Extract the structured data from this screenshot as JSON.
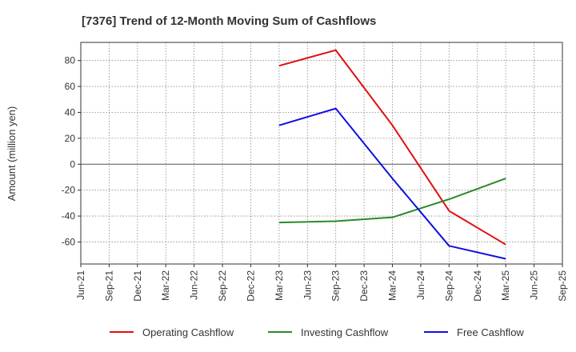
{
  "chart_data": {
    "type": "line",
    "title": "[7376]  Trend of 12-Month Moving Sum of Cashflows",
    "ylabel": "Amount (million yen)",
    "xlabel": "",
    "x": [
      "Jun-21",
      "Sep-21",
      "Dec-21",
      "Mar-22",
      "Jun-22",
      "Sep-22",
      "Dec-22",
      "Mar-23",
      "Jun-23",
      "Sep-23",
      "Dec-23",
      "Mar-24",
      "Jun-24",
      "Sep-24",
      "Dec-24",
      "Mar-25",
      "Jun-25",
      "Sep-25"
    ],
    "yticks": [
      80,
      60,
      40,
      20,
      0,
      -20,
      -40,
      -60
    ],
    "ylim": [
      -77,
      94
    ],
    "grid": true,
    "legend_position": "bottom",
    "series": [
      {
        "name": "Operating Cashflow",
        "color": "#e01010",
        "points": [
          [
            "Mar-23",
            76
          ],
          [
            "Sep-23",
            88
          ],
          [
            "Mar-24",
            30
          ],
          [
            "Sep-24",
            -36
          ],
          [
            "Mar-25",
            -62
          ]
        ]
      },
      {
        "name": "Investing Cashflow",
        "color": "#2a8a2a",
        "points": [
          [
            "Mar-23",
            -45
          ],
          [
            "Sep-23",
            -44
          ],
          [
            "Mar-24",
            -41
          ],
          [
            "Sep-24",
            -27
          ],
          [
            "Mar-25",
            -11
          ]
        ]
      },
      {
        "name": "Free Cashflow",
        "color": "#1010e0",
        "points": [
          [
            "Mar-23",
            30
          ],
          [
            "Sep-23",
            43
          ],
          [
            "Mar-24",
            -11
          ],
          [
            "Sep-24",
            -63
          ],
          [
            "Mar-25",
            -73
          ]
        ]
      }
    ]
  }
}
